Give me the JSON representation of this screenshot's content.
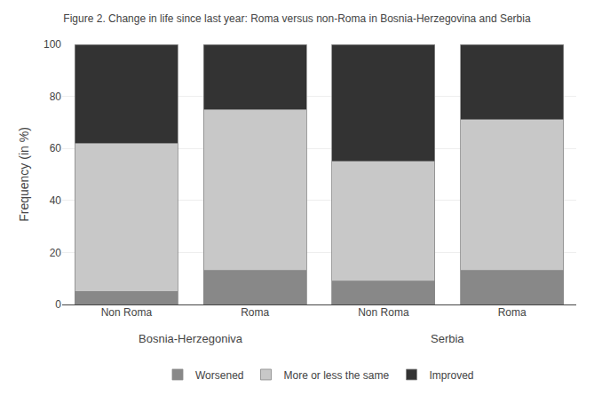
{
  "chart_data": {
    "type": "bar",
    "title": "Figure 2. Change in life since last year: Roma versus non-Roma in Bosnia-Herzegovina and Serbia",
    "ylabel": "Frequency (in %)",
    "categories": [
      "Non Roma",
      "Roma",
      "Non Roma",
      "Roma"
    ],
    "annotations": [
      "Bosnia-Herzegoniva",
      "Serbia"
    ],
    "series": [
      {
        "name": "Worsened",
        "color": "#888888",
        "values": [
          5,
          13,
          9,
          13
        ]
      },
      {
        "name": "More or less the same",
        "color": "#c8c8c8",
        "values": [
          57,
          62,
          46,
          58
        ]
      },
      {
        "name": "Improved",
        "color": "#333333",
        "values": [
          38,
          25,
          45,
          29
        ]
      }
    ],
    "stacked": true,
    "ylim": [
      0,
      100
    ],
    "yticks": [
      0,
      20,
      40,
      60,
      80,
      100
    ],
    "grid": true,
    "legend": "bottom"
  }
}
